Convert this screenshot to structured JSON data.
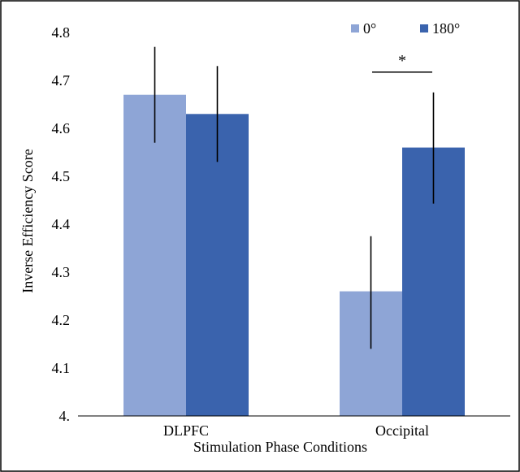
{
  "chart_data": {
    "type": "bar",
    "title": "",
    "xlabel": "Stimulation Phase Conditions",
    "ylabel": "Inverse Efficiency Score",
    "categories": [
      "DLPFC",
      "Occipital"
    ],
    "ylim": [
      4.0,
      4.8
    ],
    "yticks": [
      4.0,
      4.1,
      4.2,
      4.3,
      4.4,
      4.5,
      4.6,
      4.7,
      4.8
    ],
    "ytick_labels": [
      "4.",
      "4.1",
      "4.2",
      "4.3",
      "4.4",
      "4.5",
      "4.6",
      "4.7",
      "4.8"
    ],
    "grid": false,
    "legend_position": "top-right",
    "series": [
      {
        "name": "0°",
        "color": "#8ea5d6",
        "values": [
          4.67,
          4.26
        ],
        "error_low": [
          4.57,
          4.14
        ],
        "error_high": [
          4.77,
          4.375
        ]
      },
      {
        "name": "180°",
        "color": "#3a63ad",
        "values": [
          4.63,
          4.56
        ],
        "error_low": [
          4.53,
          4.443
        ],
        "error_high": [
          4.73,
          4.675
        ]
      }
    ],
    "annotations": [
      {
        "text": "*",
        "category": "Occipital"
      }
    ]
  }
}
